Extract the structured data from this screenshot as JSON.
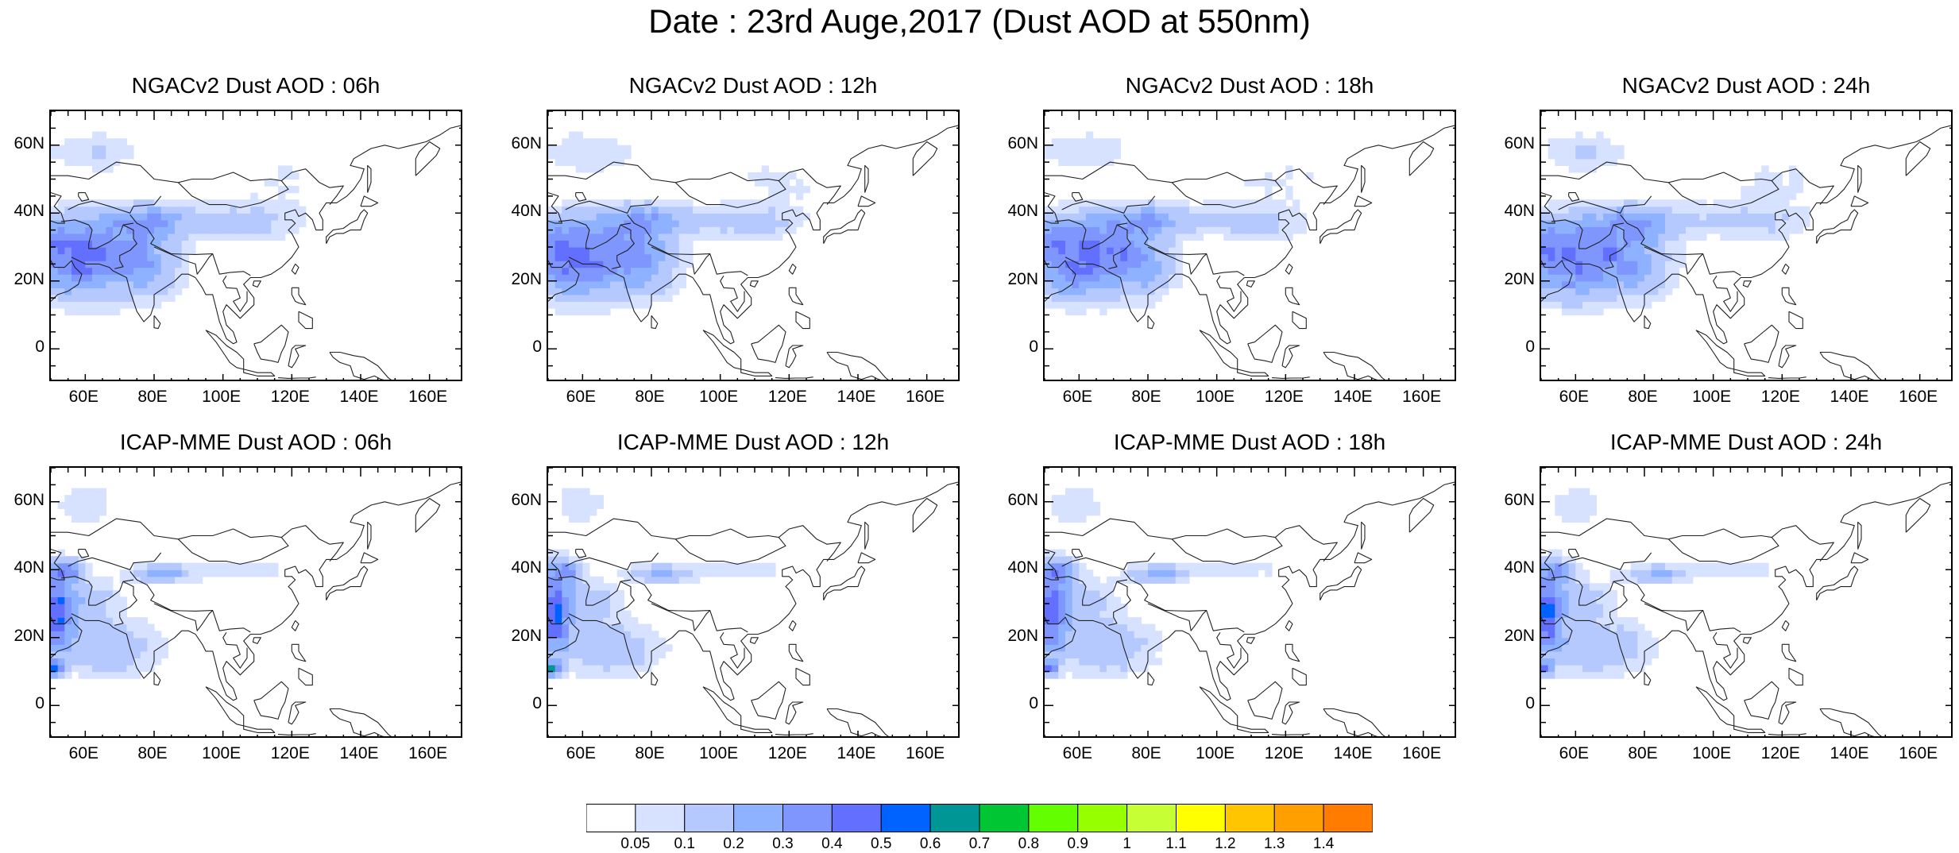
{
  "figure": {
    "title": "Date : 23rd Auge,2017 (Dust AOD at 550nm)"
  },
  "panels": [
    {
      "title": "NGACv2 Dust AOD : 06h",
      "model": "NGAC",
      "variant": 0
    },
    {
      "title": "NGACv2 Dust AOD : 12h",
      "model": "NGAC",
      "variant": 1
    },
    {
      "title": "NGACv2 Dust AOD : 18h",
      "model": "NGAC",
      "variant": 2
    },
    {
      "title": "NGACv2 Dust AOD : 24h",
      "model": "NGAC",
      "variant": 3
    },
    {
      "title": "ICAP-MME Dust AOD : 06h",
      "model": "ICAP",
      "variant": 0
    },
    {
      "title": "ICAP-MME Dust AOD : 12h",
      "model": "ICAP",
      "variant": 1
    },
    {
      "title": "ICAP-MME Dust AOD : 18h",
      "model": "ICAP",
      "variant": 2
    },
    {
      "title": "ICAP-MME Dust AOD : 24h",
      "model": "ICAP",
      "variant": 3
    }
  ],
  "map_extent": {
    "lon": [
      50,
      170
    ],
    "lat": [
      -10,
      70
    ]
  },
  "axes": {
    "lon_ticks": [
      {
        "value": 60,
        "label": "60E"
      },
      {
        "value": 80,
        "label": "80E"
      },
      {
        "value": 100,
        "label": "100E"
      },
      {
        "value": 120,
        "label": "120E"
      },
      {
        "value": 140,
        "label": "140E"
      },
      {
        "value": 160,
        "label": "160E"
      }
    ],
    "lat_ticks": [
      {
        "value": 0,
        "label": "0"
      },
      {
        "value": 20,
        "label": "20N"
      },
      {
        "value": 40,
        "label": "40N"
      },
      {
        "value": 60,
        "label": "60N"
      }
    ]
  },
  "colorbar": {
    "labels": [
      "0.05",
      "0.1",
      "0.2",
      "0.3",
      "0.4",
      "0.5",
      "0.6",
      "0.7",
      "0.8",
      "0.9",
      "1",
      "1.1",
      "1.2",
      "1.3",
      "1.4"
    ],
    "colors": [
      "#ffffff",
      "#d6e2ff",
      "#b5c9ff",
      "#8eb2ff",
      "#7f96ff",
      "#6370ff",
      "#0063ff",
      "#009696",
      "#00c633",
      "#63ff00",
      "#96ff00",
      "#c6ff33",
      "#ffff00",
      "#ffc600",
      "#ffa000",
      "#ff7c00",
      "#ff1900"
    ]
  }
}
